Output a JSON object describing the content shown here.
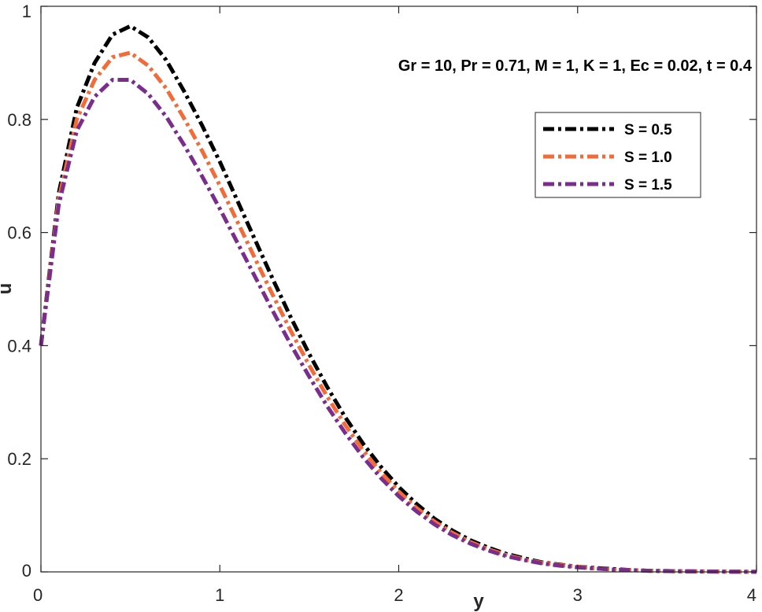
{
  "chart_data": {
    "type": "line",
    "title": "",
    "xlabel": "y",
    "ylabel": "u",
    "xlim": [
      0,
      4
    ],
    "ylim": [
      0,
      1
    ],
    "xticks": [
      "0",
      "1",
      "2",
      "3",
      "4"
    ],
    "yticks": [
      "0",
      "0.2",
      "0.4",
      "0.6",
      "0.8",
      "1"
    ],
    "annotation": "Gr = 10,  Pr = 0.71, M = 1, K = 1, Ec = 0.02, t = 0.4",
    "legend_position": "top-right",
    "grid": false,
    "x": [
      0,
      0.1,
      0.2,
      0.3,
      0.4,
      0.5,
      0.6,
      0.7,
      0.8,
      0.9,
      1.0,
      1.1,
      1.2,
      1.3,
      1.4,
      1.5,
      1.6,
      1.7,
      1.8,
      1.9,
      2.0,
      2.1,
      2.2,
      2.3,
      2.4,
      2.5,
      2.6,
      2.7,
      2.8,
      2.9,
      3.0,
      3.1,
      3.2,
      3.3,
      3.4,
      3.5,
      3.6,
      3.7,
      3.8,
      3.9,
      4.0
    ],
    "series": [
      {
        "name": "S  = 0.5",
        "color": "#000000",
        "values": [
          0.4,
          0.67,
          0.82,
          0.9,
          0.95,
          0.965,
          0.945,
          0.905,
          0.85,
          0.79,
          0.725,
          0.655,
          0.585,
          0.515,
          0.448,
          0.385,
          0.327,
          0.274,
          0.227,
          0.186,
          0.15,
          0.12,
          0.094,
          0.073,
          0.056,
          0.043,
          0.032,
          0.024,
          0.017,
          0.013,
          0.009,
          0.007,
          0.005,
          0.003,
          0.002,
          0.0015,
          0.001,
          0.0008,
          0.0005,
          0.0003,
          0.0002
        ]
      },
      {
        "name": "S  = 1.0",
        "color": "#f26b38",
        "values": [
          0.4,
          0.66,
          0.8,
          0.87,
          0.91,
          0.918,
          0.895,
          0.855,
          0.802,
          0.745,
          0.683,
          0.618,
          0.552,
          0.487,
          0.424,
          0.365,
          0.31,
          0.26,
          0.215,
          0.176,
          0.142,
          0.113,
          0.089,
          0.069,
          0.053,
          0.04,
          0.03,
          0.022,
          0.016,
          0.012,
          0.009,
          0.006,
          0.004,
          0.003,
          0.002,
          0.0015,
          0.001,
          0.0007,
          0.0005,
          0.0003,
          0.0002
        ]
      },
      {
        "name": "S  = 1.5",
        "color": "#7b2d8e",
        "values": [
          0.4,
          0.65,
          0.78,
          0.84,
          0.87,
          0.87,
          0.845,
          0.805,
          0.755,
          0.7,
          0.642,
          0.581,
          0.52,
          0.459,
          0.4,
          0.345,
          0.293,
          0.246,
          0.203,
          0.166,
          0.134,
          0.107,
          0.084,
          0.065,
          0.05,
          0.038,
          0.028,
          0.021,
          0.015,
          0.011,
          0.008,
          0.006,
          0.004,
          0.003,
          0.002,
          0.0014,
          0.001,
          0.0007,
          0.0005,
          0.0003,
          0.0002
        ]
      }
    ]
  }
}
